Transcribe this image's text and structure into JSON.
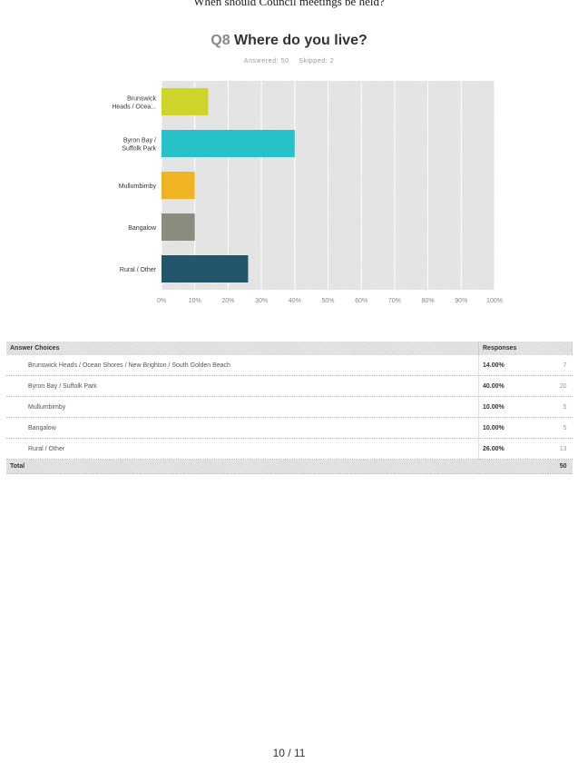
{
  "doc_header": "When should Council meetings be held?",
  "question": {
    "number": "Q8",
    "text": "Where do you live?",
    "answered": "Answered: 50",
    "skipped": "Skipped: 2"
  },
  "chart_data": {
    "type": "bar",
    "orientation": "horizontal",
    "categories": [
      "Brunswick Heads / Ocea...",
      "Byron Bay / Suffolk Park",
      "Mullumbimby",
      "Bangalow",
      "Rural / Other"
    ],
    "category_lines": [
      [
        "Brunswick",
        "Heads / Ocea..."
      ],
      [
        "Byron Bay /",
        "Suffolk Park"
      ],
      [
        "Mullumbimby"
      ],
      [
        "Bangalow"
      ],
      [
        "Rural / Other"
      ]
    ],
    "values": [
      14,
      40,
      10,
      10,
      26
    ],
    "colors": [
      "#cdd42a",
      "#26c1c9",
      "#f0b323",
      "#898d7e",
      "#24566b"
    ],
    "xlim": [
      0,
      100
    ],
    "xticks": [
      "0%",
      "10%",
      "20%",
      "30%",
      "40%",
      "50%",
      "60%",
      "70%",
      "80%",
      "90%",
      "100%"
    ],
    "grid": true
  },
  "table": {
    "headers": [
      "Answer Choices",
      "Responses"
    ],
    "rows": [
      {
        "choice": "Brunswick Heads / Ocean Shores / New Brighton / South Golden Beach",
        "percent": "14.00%",
        "count": "7"
      },
      {
        "choice": "Byron Bay / Suffolk Park",
        "percent": "40.00%",
        "count": "20"
      },
      {
        "choice": "Mullumbimby",
        "percent": "10.00%",
        "count": "5"
      },
      {
        "choice": "Bangalow",
        "percent": "10.00%",
        "count": "5"
      },
      {
        "choice": "Rural / Other",
        "percent": "26.00%",
        "count": "13"
      }
    ],
    "total_label": "Total",
    "total_count": "50"
  },
  "page_footer": "10 / 11"
}
